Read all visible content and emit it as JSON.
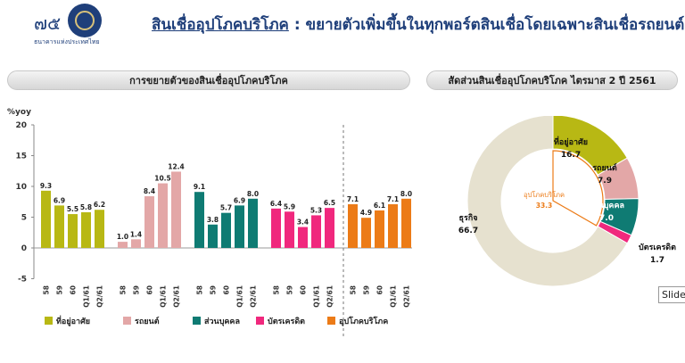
{
  "brand": {
    "logo_number": "๗๕",
    "bank_name": "ธนาคารแห่งประเทศไทย"
  },
  "page": {
    "title_underlined": "สินเชื่ออุปโภคบริโภค",
    "title_rest": " : ขยายตัวเพิ่มขึ้นในทุกพอร์ตสินเชื่อโดยเฉพาะสินเชื่อรถยนต์"
  },
  "left_panel": {
    "header": "การขยายตัวของสินเชื่ออุปโภคบริโภค"
  },
  "right_panel": {
    "header": "สัดส่วนสินเชื่ออุปโภคบริโภค ไตรมาส 2 ปี 2561"
  },
  "tooltip": {
    "text": "SlideT"
  },
  "colors": {
    "housing": "#b8b814",
    "auto": "#e3a7a7",
    "personal": "#0f7b73",
    "card": "#f0287d",
    "consumer": "#ec7b17",
    "business": "#e6e1cf"
  },
  "chart_data": [
    {
      "type": "bar",
      "ylabel": "%yoy",
      "ylim": [
        -5,
        20
      ],
      "yticks": [
        -5,
        0,
        5,
        10,
        15,
        20
      ],
      "legend_position": "bottom",
      "grid": false,
      "categories": [
        "58",
        "59",
        "60",
        "Q1/61",
        "Q2/61"
      ],
      "series": [
        {
          "name": "ที่อยู่อาศัย",
          "values": [
            9.3,
            6.9,
            5.5,
            5.8,
            6.2
          ]
        },
        {
          "name": "รถยนต์",
          "values": [
            1.0,
            1.4,
            8.4,
            10.5,
            12.4
          ]
        },
        {
          "name": "ส่วนบุคคล",
          "values": [
            9.1,
            3.8,
            5.7,
            6.9,
            8.0
          ]
        },
        {
          "name": "บัตรเครดิต",
          "values": [
            6.4,
            5.9,
            3.4,
            5.3,
            6.5
          ]
        },
        {
          "name": "อุปโภคบริโภค",
          "values": [
            7.1,
            4.9,
            6.1,
            7.1,
            8.0
          ]
        }
      ]
    },
    {
      "type": "pie",
      "title": "สัดส่วนสินเชื่ออุปโภคบริโภค ไตรมาส 2 ปี 2561",
      "outer_slices": [
        {
          "label": "ที่อยู่อาศัย",
          "value": 16.7
        },
        {
          "label": "รถยนต์",
          "value": 7.9
        },
        {
          "label": "ส่วนบุคคล",
          "value": 7.0
        },
        {
          "label": "บัตรเครดิต",
          "value": 1.7
        },
        {
          "label": "ธุรกิจ",
          "value": 66.7
        }
      ],
      "inner_label": "อุปโภคบริโภค",
      "inner_value": "33.3"
    }
  ]
}
